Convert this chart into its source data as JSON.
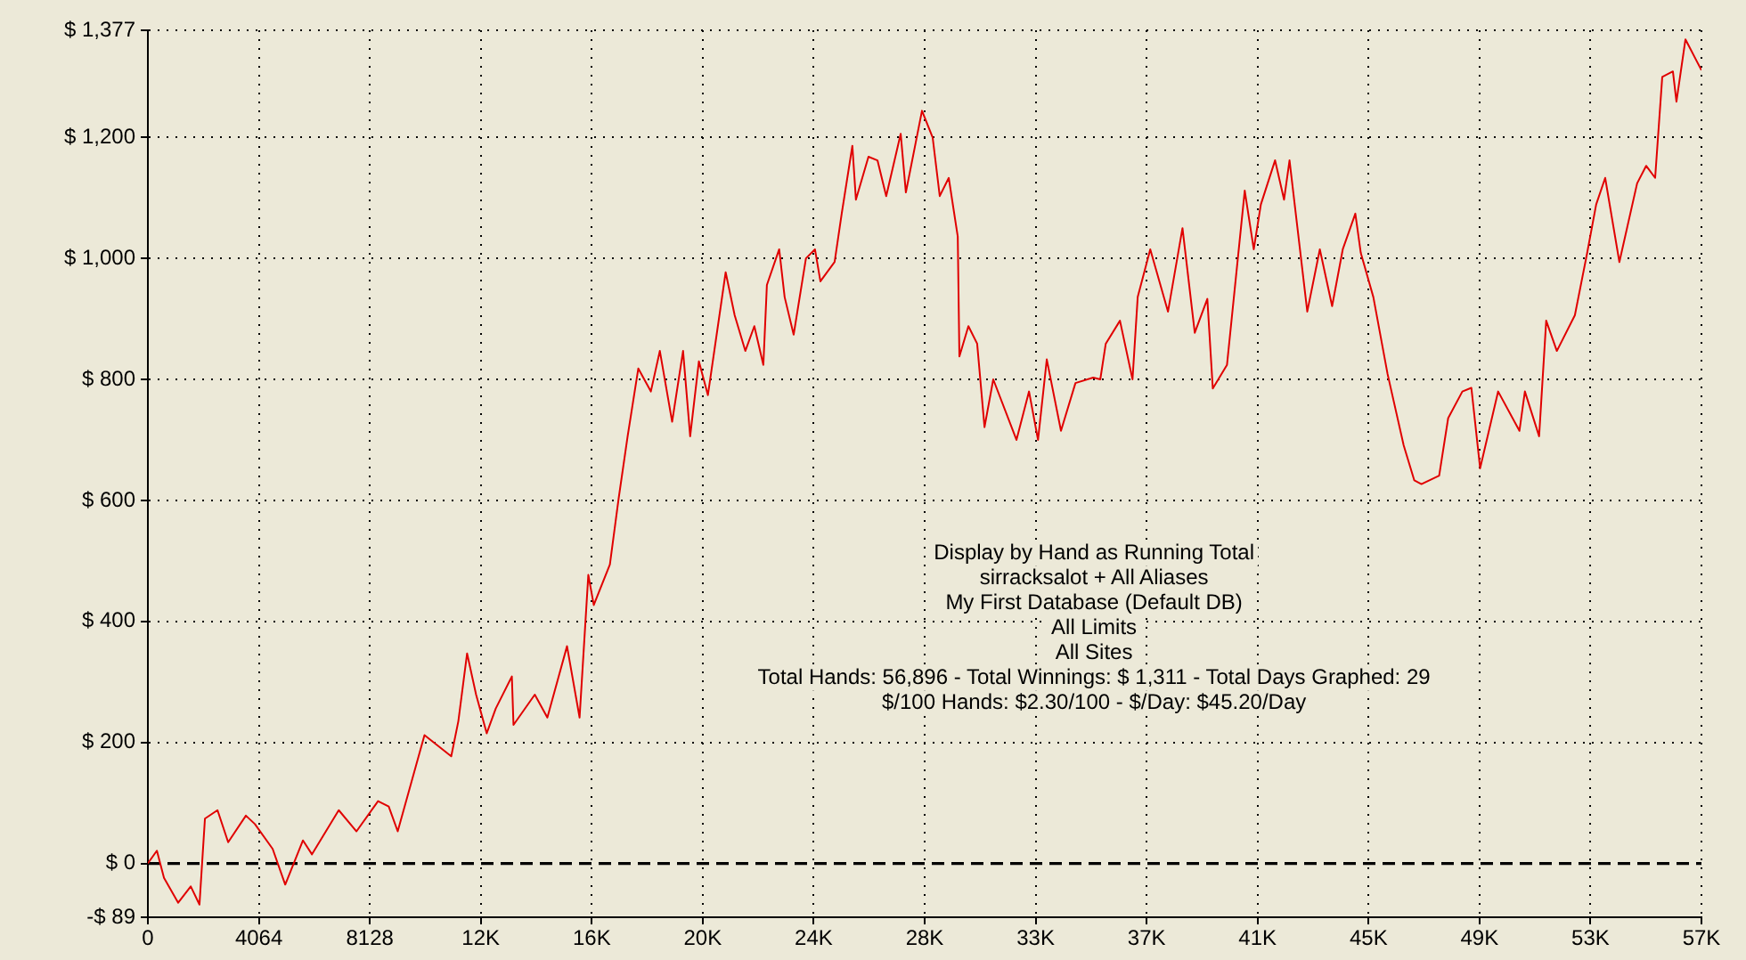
{
  "chart_data": {
    "type": "line",
    "x": [
      0,
      330,
      590,
      1110,
      1570,
      1890,
      2090,
      2550,
      2940,
      3590,
      3920,
      4570,
      5030,
      5680,
      6010,
      6990,
      7640,
      8430,
      8820,
      9150,
      10130,
      11110,
      11370,
      11690,
      12020,
      12410,
      12740,
      13330,
      13390,
      14170,
      14630,
      15350,
      15810,
      16130,
      16330,
      16920,
      17240,
      17570,
      17960,
      18420,
      18750,
      19200,
      19600,
      19860,
      20180,
      20510,
      21160,
      21490,
      21880,
      22210,
      22540,
      22670,
      23120,
      23320,
      23650,
      24100,
      24430,
      24630,
      25150,
      25410,
      25800,
      25930,
      26390,
      26720,
      27040,
      27570,
      27760,
      28350,
      28740,
      29000,
      29330,
      29660,
      29720,
      30050,
      30370,
      30640,
      30960,
      31810,
      32270,
      32600,
      32920,
      33440,
      33970,
      34620,
      34880,
      35080,
      35600,
      36060,
      36250,
      36710,
      37360,
      37890,
      38340,
      38800,
      39000,
      39520,
      40170,
      40500,
      40760,
      41280,
      41610,
      41810,
      42460,
      42920,
      43370,
      43760,
      44220,
      44420,
      44880,
      45400,
      45990,
      46380,
      46640,
      47290,
      47620,
      48140,
      48470,
      48790,
      49450,
      50230,
      50430,
      50950,
      51210,
      51600,
      52260,
      52710,
      53040,
      53370,
      53890,
      54540,
      54870,
      55200,
      55460,
      55850,
      55980,
      56310,
      56896
    ],
    "series": [
      {
        "color": "#e00000",
        "values": [
          0,
          21,
          -24,
          -65,
          -38,
          -68,
          74,
          88,
          35,
          79,
          65,
          24,
          -35,
          38,
          15,
          88,
          53,
          103,
          94,
          53,
          212,
          177,
          235,
          347,
          279,
          215,
          256,
          309,
          229,
          279,
          241,
          359,
          241,
          477,
          427,
          494,
          603,
          706,
          818,
          780,
          847,
          730,
          847,
          706,
          830,
          774,
          977,
          906,
          847,
          888,
          824,
          956,
          1015,
          936,
          874,
          1000,
          1015,
          962,
          994,
          1074,
          1186,
          1097,
          1168,
          1162,
          1103,
          1206,
          1109,
          1244,
          1200,
          1103,
          1133,
          1036,
          838,
          888,
          859,
          721,
          800,
          700,
          780,
          700,
          833,
          715,
          794,
          803,
          800,
          859,
          897,
          800,
          936,
          1015,
          912,
          1050,
          877,
          933,
          785,
          824,
          1112,
          1015,
          1089,
          1162,
          1097,
          1162,
          912,
          1015,
          921,
          1015,
          1074,
          1009,
          936,
          809,
          691,
          633,
          627,
          641,
          736,
          780,
          786,
          653,
          780,
          715,
          780,
          706,
          897,
          847,
          906,
          1009,
          1089,
          1133,
          994,
          1124,
          1153,
          1133,
          1300,
          1309,
          1259,
          1362,
          1311
        ]
      }
    ],
    "xlim": [
      0,
      56896
    ],
    "xticks": [
      0,
      4064,
      8128,
      {
        "value": 12192,
        "label": "12K"
      },
      {
        "value": 16256,
        "label": "16K"
      },
      {
        "value": 20320,
        "label": "20K"
      },
      {
        "value": 24384,
        "label": "24K"
      },
      {
        "value": 28448,
        "label": "28K"
      },
      {
        "value": 32512,
        "label": "33K"
      },
      {
        "value": 36576,
        "label": "37K"
      },
      {
        "value": 40640,
        "label": "41K"
      },
      {
        "value": 44704,
        "label": "45K"
      },
      {
        "value": 48768,
        "label": "49K"
      },
      {
        "value": 52832,
        "label": "53K"
      },
      {
        "value": 56896,
        "label": "57K"
      }
    ],
    "ylim": [
      -89,
      1377
    ],
    "yticks": [
      {
        "value": -89,
        "label": "-$ 89"
      },
      {
        "value": 0,
        "label": "$ 0"
      },
      {
        "value": 200,
        "label": "$ 200"
      },
      {
        "value": 400,
        "label": "$ 400"
      },
      {
        "value": 600,
        "label": "$ 600"
      },
      {
        "value": 800,
        "label": "$ 800"
      },
      {
        "value": 1000,
        "label": "$ 1,000"
      },
      {
        "value": 1200,
        "label": "$ 1,200"
      },
      {
        "value": 1377,
        "label": "$ 1,377"
      }
    ],
    "grid": true,
    "ref_lines": [
      {
        "axis": "y",
        "value": 0,
        "line_style": "dashed",
        "color": "#000000"
      }
    ],
    "annotations": [
      "Display by Hand as Running Total",
      "sirracksalot + All Aliases",
      "My First Database (Default DB)",
      "All Limits",
      "All Sites",
      "Total Hands: 56,896 - Total Winnings: $ 1,311 - Total Days Graphed: 29",
      "$/100 Hands: $2.30/100 - $/Day: $45.20/Day"
    ]
  }
}
